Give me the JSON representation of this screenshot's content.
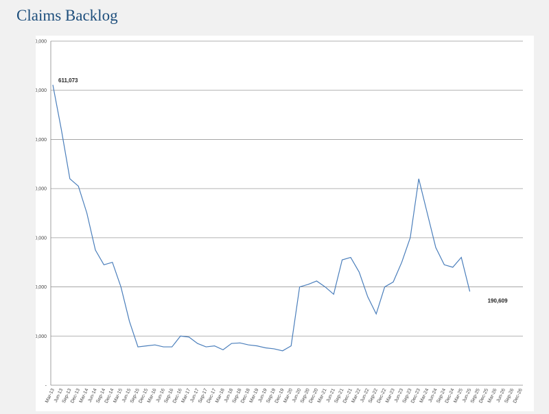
{
  "chart_data": {
    "type": "line",
    "title": "Claims Backlog",
    "categories": [
      "Mar-13",
      "Jun-13",
      "Sep-13",
      "Dec-13",
      "Mar-14",
      "Jun-14",
      "Sep-14",
      "Dec-14",
      "Mar-15",
      "Jun-15",
      "Sep-15",
      "Dec-15",
      "Mar-16",
      "Jun-16",
      "Sep-16",
      "Dec-16",
      "Mar-17",
      "Jun-17",
      "Sep-17",
      "Dec-17",
      "Mar-18",
      "Jun-18",
      "Sep-18",
      "Dec-18",
      "Mar-19",
      "Jun-19",
      "Sep-19",
      "Dec-19",
      "Mar-20",
      "Jun-20",
      "Sep-20",
      "Dec-20",
      "Mar-21",
      "Jun-21",
      "Sep-21",
      "Dec-21",
      "Mar-22",
      "Jun-22",
      "Sep-22",
      "Dec-22",
      "Mar-23",
      "Jun-23",
      "Sep-23",
      "Dec-23",
      "Mar-24",
      "Jun-24",
      "Sep-24",
      "Dec-24",
      "Mar-25",
      "Jun-25",
      "Sep-25",
      "Dec-25",
      "Mar-26",
      "Jun-26",
      "Sep-26",
      "Dec-26"
    ],
    "values": [
      611073,
      520000,
      420000,
      405000,
      350000,
      275000,
      245000,
      250000,
      200000,
      130000,
      78000,
      80000,
      82000,
      78000,
      78000,
      100000,
      98000,
      85000,
      78000,
      80000,
      72000,
      85000,
      86000,
      82000,
      80000,
      76000,
      74000,
      70000,
      80000,
      200000,
      205000,
      212000,
      200000,
      185000,
      255000,
      260000,
      230000,
      180000,
      145000,
      200000,
      210000,
      250000,
      300000,
      420000,
      350000,
      280000,
      245000,
      240000,
      260000,
      190609,
      null,
      null,
      null,
      null,
      null,
      null
    ],
    "value_labels": [
      "611,073",
      null,
      null,
      null,
      null,
      null,
      null,
      null,
      null,
      null,
      null,
      null,
      null,
      null,
      null,
      null,
      null,
      null,
      null,
      null,
      null,
      null,
      null,
      null,
      null,
      null,
      null,
      null,
      null,
      null,
      null,
      null,
      null,
      null,
      null,
      null,
      null,
      null,
      null,
      null,
      null,
      null,
      null,
      null,
      null,
      null,
      null,
      null,
      null,
      "190,609",
      null,
      null,
      null,
      null,
      null,
      null
    ],
    "color": "#4a7ebb",
    "ylim": [
      0,
      700000
    ],
    "yticks": [
      {
        "value": 0,
        "label": "-"
      },
      {
        "value": 100000,
        "label": "100,000"
      },
      {
        "value": 200000,
        "label": "200,000"
      },
      {
        "value": 300000,
        "label": "300,000"
      },
      {
        "value": 400000,
        "label": "400,000"
      },
      {
        "value": 500000,
        "label": "500,000"
      },
      {
        "value": 600000,
        "label": "600,000"
      },
      {
        "value": 700000,
        "label": "700,000"
      }
    ],
    "grid": true
  }
}
